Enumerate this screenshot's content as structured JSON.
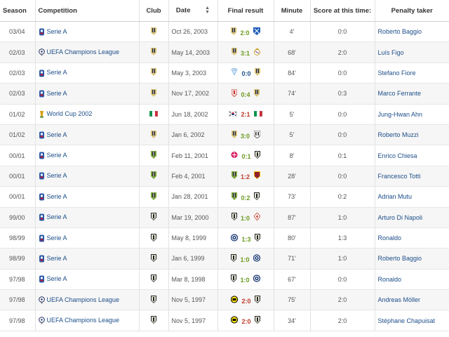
{
  "headers": {
    "season": "Season",
    "competition": "Competition",
    "club": "Club",
    "date": "Date",
    "final_result": "Final result",
    "minute": "Minute",
    "score_at_time": "Score at this time:",
    "penalty_taker": "Penalty taker"
  },
  "colors": {
    "link": "#1d4e89",
    "win": "#6b9a1f",
    "loss": "#c0392b",
    "draw": "#1d4e89"
  },
  "rows": [
    {
      "season": "03/04",
      "competition": "Serie A",
      "comp_icon": "serie-a-icon",
      "club_icon": "juventus-crest",
      "date": "Oct 26, 2003",
      "home_icon": "juventus-crest",
      "result": "2:0",
      "result_color": "#6b9a1f",
      "away_icon": "brescia-crest",
      "minute": "4'",
      "score": "0:0",
      "taker": "Roberto Baggio"
    },
    {
      "season": "02/03",
      "competition": "UEFA Champions League",
      "comp_icon": "ucl-icon",
      "club_icon": "juventus-crest",
      "date": "May 14, 2003",
      "home_icon": "juventus-crest",
      "result": "3:1",
      "result_color": "#6b9a1f",
      "away_icon": "real-madrid-crest",
      "minute": "68'",
      "score": "2:0",
      "taker": "Luís Figo"
    },
    {
      "season": "02/03",
      "competition": "Serie A",
      "comp_icon": "serie-a-icon",
      "club_icon": "juventus-crest",
      "date": "May 3, 2003",
      "home_icon": "lazio-crest",
      "result": "0:0",
      "result_color": "#1d4e89",
      "away_icon": "juventus-crest",
      "minute": "84'",
      "score": "0:0",
      "taker": "Stefano Fiore"
    },
    {
      "season": "02/03",
      "competition": "Serie A",
      "comp_icon": "serie-a-icon",
      "club_icon": "juventus-crest",
      "date": "Nov 17, 2002",
      "home_icon": "perugia-crest",
      "result": "0:4",
      "result_color": "#6b9a1f",
      "away_icon": "juventus-crest",
      "minute": "74'",
      "score": "0:3",
      "taker": "Marco Ferrante"
    },
    {
      "season": "01/02",
      "competition": "World Cup 2002",
      "comp_icon": "world-cup-icon",
      "club_icon": "italy-flag",
      "date": "Jun 18, 2002",
      "home_icon": "korea-flag",
      "result": "2:1",
      "result_color": "#c0392b",
      "away_icon": "italy-flag",
      "minute": "5'",
      "score": "0:0",
      "taker": "Jung-Hwan Ahn"
    },
    {
      "season": "01/02",
      "competition": "Serie A",
      "comp_icon": "serie-a-icon",
      "club_icon": "juventus-crest",
      "date": "Jan 6, 2002",
      "home_icon": "juventus-crest",
      "result": "3:0",
      "result_color": "#6b9a1f",
      "away_icon": "udinese-crest",
      "minute": "5'",
      "score": "0:0",
      "taker": "Roberto Muzzi"
    },
    {
      "season": "00/01",
      "competition": "Serie A",
      "comp_icon": "serie-a-icon",
      "club_icon": "juventus-crest-green",
      "date": "Feb 11, 2001",
      "home_icon": "other-crest",
      "result": "0:1",
      "result_color": "#6b9a1f",
      "away_icon": "parma-crest",
      "minute": "8'",
      "score": "0:1",
      "taker": "Enrico Chiesa"
    },
    {
      "season": "00/01",
      "competition": "Serie A",
      "comp_icon": "serie-a-icon",
      "club_icon": "juventus-crest-green",
      "date": "Feb 4, 2001",
      "home_icon": "juventus-crest-green",
      "result": "1:2",
      "result_color": "#c0392b",
      "away_icon": "roma-crest",
      "minute": "28'",
      "score": "0:0",
      "taker": "Francesco Totti"
    },
    {
      "season": "00/01",
      "competition": "Serie A",
      "comp_icon": "serie-a-icon",
      "club_icon": "juventus-crest-green",
      "date": "Jan 28, 2001",
      "home_icon": "juventus-crest-green",
      "result": "0:2",
      "result_color": "#6b9a1f",
      "away_icon": "parma-crest",
      "minute": "73'",
      "score": "0:2",
      "taker": "Adrian Mutu"
    },
    {
      "season": "99/00",
      "competition": "Serie A",
      "comp_icon": "serie-a-icon",
      "club_icon": "parma-crest",
      "date": "Mar 19, 2000",
      "home_icon": "parma-crest",
      "result": "1:0",
      "result_color": "#6b9a1f",
      "away_icon": "fiorentina-crest",
      "minute": "87'",
      "score": "1:0",
      "taker": "Arturo Di Napoli"
    },
    {
      "season": "98/99",
      "competition": "Serie A",
      "comp_icon": "serie-a-icon",
      "club_icon": "parma-crest",
      "date": "May 8, 1999",
      "home_icon": "inter-crest",
      "result": "1:3",
      "result_color": "#6b9a1f",
      "away_icon": "parma-crest",
      "minute": "80'",
      "score": "1:3",
      "taker": "Ronaldo"
    },
    {
      "season": "98/99",
      "competition": "Serie A",
      "comp_icon": "serie-a-icon",
      "club_icon": "parma-crest",
      "date": "Jan 6, 1999",
      "home_icon": "parma-crest",
      "result": "1:0",
      "result_color": "#6b9a1f",
      "away_icon": "inter-crest",
      "minute": "71'",
      "score": "1:0",
      "taker": "Roberto Baggio"
    },
    {
      "season": "97/98",
      "competition": "Serie A",
      "comp_icon": "serie-a-icon",
      "club_icon": "parma-crest",
      "date": "Mar 8, 1998",
      "home_icon": "parma-crest",
      "result": "1:0",
      "result_color": "#6b9a1f",
      "away_icon": "inter-crest",
      "minute": "67'",
      "score": "0:0",
      "taker": "Ronaldo"
    },
    {
      "season": "97/98",
      "competition": "UEFA Champions League",
      "comp_icon": "ucl-icon",
      "club_icon": "parma-crest",
      "date": "Nov 5, 1997",
      "home_icon": "dortmund-crest",
      "result": "2:0",
      "result_color": "#c0392b",
      "away_icon": "parma-crest",
      "minute": "75'",
      "score": "2:0",
      "taker": "Andreas Möller"
    },
    {
      "season": "97/98",
      "competition": "UEFA Champions League",
      "comp_icon": "ucl-icon",
      "club_icon": "parma-crest",
      "date": "Nov 5, 1997",
      "home_icon": "dortmund-crest",
      "result": "2:0",
      "result_color": "#c0392b",
      "away_icon": "parma-crest",
      "minute": "34'",
      "score": "2:0",
      "taker": "Stéphane Chapuisat"
    }
  ]
}
